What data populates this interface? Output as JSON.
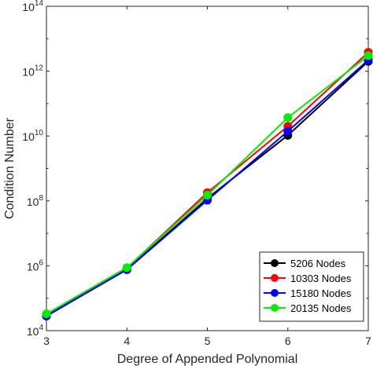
{
  "chart_data": {
    "type": "line",
    "title": "",
    "xlabel": "Degree of Appended Polynomial",
    "ylabel": "Condition Number",
    "x": [
      3,
      4,
      5,
      6,
      7
    ],
    "xlim": [
      3,
      7
    ],
    "x_ticks": [
      "3",
      "4",
      "5",
      "6",
      "7"
    ],
    "yscale": "log",
    "ylim": [
      10000,
      100000000000000
    ],
    "y_tick_base": "10",
    "y_tick_exponents": [
      "4",
      "6",
      "8",
      "10",
      "12",
      "14"
    ],
    "grid": false,
    "legend_position": "bottom-right",
    "series": [
      {
        "name": "5206 Nodes",
        "color": "#000000",
        "values": [
          28000,
          780000,
          120000000,
          10500000000,
          2000000000000
        ]
      },
      {
        "name": "10303 Nodes",
        "color": "#ff0000",
        "values": [
          29000,
          850000,
          180000000,
          20000000000,
          3800000000000
        ]
      },
      {
        "name": "15180 Nodes",
        "color": "#0000ff",
        "values": [
          28500,
          760000,
          105000000,
          14000000000,
          2200000000000
        ]
      },
      {
        "name": "20135 Nodes",
        "color": "#00ee00",
        "values": [
          33000,
          880000,
          150000000,
          37000000000,
          3000000000000
        ]
      }
    ]
  }
}
